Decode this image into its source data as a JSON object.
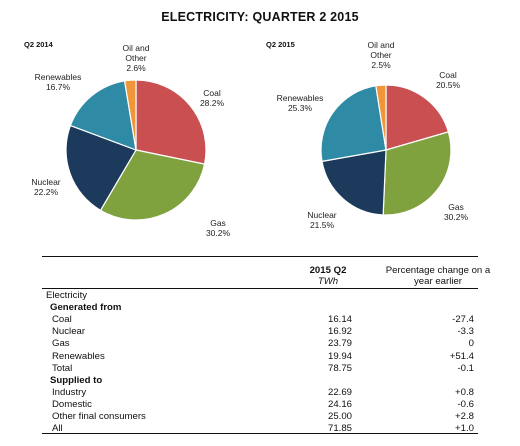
{
  "title": "ELECTRICITY: QUARTER 2 2015",
  "chart_data": [
    {
      "type": "pie",
      "title": "Q2 2014",
      "slices": [
        {
          "label": [
            "Coal",
            "28.2%"
          ],
          "value": 28.2,
          "color": "#c94f50"
        },
        {
          "label": [
            "Gas",
            "30.2%"
          ],
          "value": 30.2,
          "color": "#7fa23f"
        },
        {
          "label": [
            "Nuclear",
            "22.2%"
          ],
          "value": 22.2,
          "color": "#1b3a5c"
        },
        {
          "label": [
            "Renewables",
            "16.7%"
          ],
          "value": 16.7,
          "color": "#2f8aa6"
        },
        {
          "label": [
            "Oil and",
            "Other",
            "2.6%"
          ],
          "value": 2.6,
          "color": "#f0953a"
        }
      ]
    },
    {
      "type": "pie",
      "title": "Q2 2015",
      "slices": [
        {
          "label": [
            "Coal",
            "20.5%"
          ],
          "value": 20.5,
          "color": "#c94f50"
        },
        {
          "label": [
            "Gas",
            "30.2%"
          ],
          "value": 30.2,
          "color": "#7fa23f"
        },
        {
          "label": [
            "Nuclear",
            "21.5%"
          ],
          "value": 21.5,
          "color": "#1b3a5c"
        },
        {
          "label": [
            "Renewables",
            "25.3%"
          ],
          "value": 25.3,
          "color": "#2f8aa6"
        },
        {
          "label": [
            "Oil and",
            "Other",
            "2.5%"
          ],
          "value": 2.5,
          "color": "#f0953a"
        }
      ]
    }
  ],
  "table": {
    "col1_header": "2015 Q2",
    "col1_unit": "TWh",
    "col2_header": [
      "Percentage change on a",
      "year earlier"
    ],
    "rows": [
      {
        "label": "Electricity",
        "style": "top",
        "v1": "",
        "v2": ""
      },
      {
        "label": "Generated from",
        "style": "bold",
        "v1": "",
        "v2": ""
      },
      {
        "label": "Coal",
        "style": "ind",
        "v1": "16.14",
        "v2": "-27.4"
      },
      {
        "label": "Nuclear",
        "style": "ind",
        "v1": "16.92",
        "v2": "-3.3"
      },
      {
        "label": "Gas",
        "style": "ind",
        "v1": "23.79",
        "v2": "0"
      },
      {
        "label": "Renewables",
        "style": "ind",
        "v1": "19.94",
        "v2": "+51.4"
      },
      {
        "label": "Total",
        "style": "ind",
        "v1": "78.75",
        "v2": "-0.1"
      },
      {
        "label": "Supplied to",
        "style": "bold",
        "v1": "",
        "v2": ""
      },
      {
        "label": "Industry",
        "style": "ind",
        "v1": "22.69",
        "v2": "+0.8"
      },
      {
        "label": "Domestic",
        "style": "ind",
        "v1": "24.16",
        "v2": "-0.6"
      },
      {
        "label": "Other final consumers",
        "style": "ind",
        "v1": "25.00",
        "v2": "+2.8"
      },
      {
        "label": "All",
        "style": "ind",
        "v1": "71.85",
        "v2": "+1.0"
      }
    ]
  }
}
